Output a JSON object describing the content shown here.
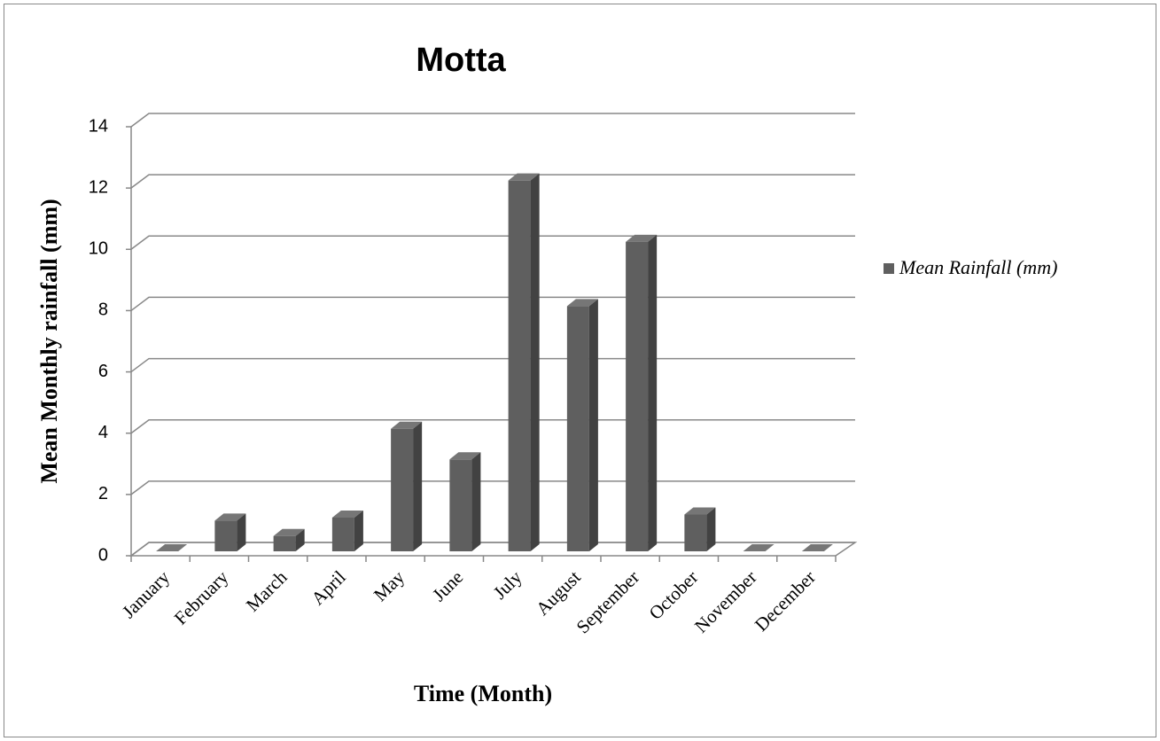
{
  "chart_data": {
    "type": "bar3d",
    "title": "Motta",
    "x_label": "Time (Month)",
    "y_label": "Mean Monthly rainfall (mm)",
    "categories": [
      "January",
      "February",
      "March",
      "April",
      "May",
      "June",
      "July",
      "August",
      "September",
      "October",
      "November",
      "December"
    ],
    "series": [
      {
        "name": "Mean Rainfall (mm)",
        "color": "#5f5f5f",
        "values": [
          0,
          1.0,
          0.5,
          1.1,
          4.0,
          3.0,
          12.1,
          8.0,
          10.1,
          1.2,
          0,
          0
        ]
      }
    ],
    "ylim": [
      0,
      14
    ],
    "yticks": [
      0,
      2,
      4,
      6,
      8,
      10,
      12,
      14
    ],
    "grid": true,
    "legend": "right"
  }
}
